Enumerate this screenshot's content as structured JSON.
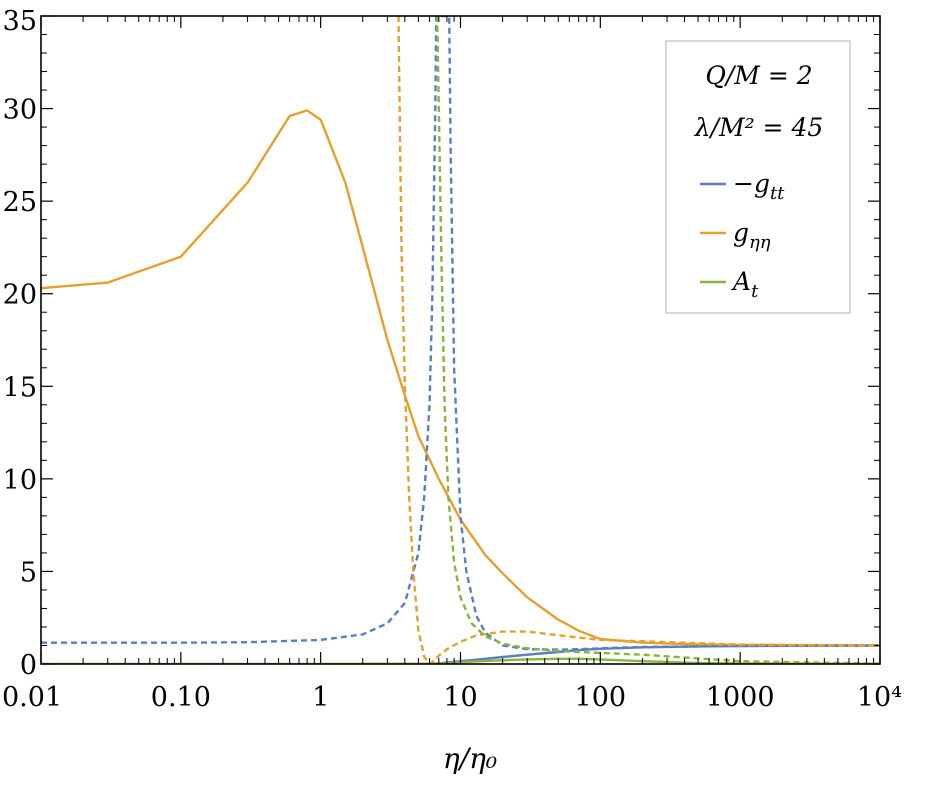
{
  "chart_data": {
    "type": "line",
    "xlabel": "η/η₀",
    "ylabel": "",
    "xscale": "log",
    "xlim": [
      0.01,
      10000
    ],
    "ylim": [
      0,
      35
    ],
    "grid": false,
    "legend_placement": "top-right",
    "annotations": [
      "Q/M = 2",
      "λ/M² = 45"
    ],
    "x_ticks": [
      {
        "value": 0.01,
        "label": "0.01"
      },
      {
        "value": 0.1,
        "label": "0.10"
      },
      {
        "value": 1,
        "label": "1"
      },
      {
        "value": 10,
        "label": "10"
      },
      {
        "value": 100,
        "label": "100"
      },
      {
        "value": 1000,
        "label": "1000"
      },
      {
        "value": 10000,
        "label": "10⁴"
      }
    ],
    "y_ticks": [
      {
        "value": 0,
        "label": "0"
      },
      {
        "value": 5,
        "label": "5"
      },
      {
        "value": 10,
        "label": "10"
      },
      {
        "value": 15,
        "label": "15"
      },
      {
        "value": 20,
        "label": "20"
      },
      {
        "value": 25,
        "label": "25"
      },
      {
        "value": 30,
        "label": "30"
      },
      {
        "value": 35,
        "label": "35"
      }
    ],
    "series": [
      {
        "name": "−g_tt",
        "color": "#5a7ec0",
        "style": "solid",
        "x": [
          6.2,
          7,
          8,
          10,
          15,
          20,
          30,
          50,
          70,
          100,
          200,
          500,
          1000,
          10000
        ],
        "y": [
          0,
          0.03,
          0.08,
          0.15,
          0.28,
          0.38,
          0.5,
          0.65,
          0.75,
          0.82,
          0.9,
          0.95,
          0.97,
          1.0
        ]
      },
      {
        "name": "g_ηη",
        "color": "#e5a02e",
        "style": "solid",
        "x": [
          0.01,
          0.03,
          0.1,
          0.3,
          0.6,
          0.8,
          1,
          1.5,
          2,
          3,
          4,
          5,
          7,
          10,
          15,
          20,
          30,
          50,
          70,
          100,
          200,
          500,
          1000,
          10000
        ],
        "y": [
          20.3,
          20.6,
          22,
          26,
          29.6,
          29.9,
          29.4,
          26,
          22.5,
          17.5,
          14.5,
          12.3,
          10,
          7.8,
          5.9,
          4.9,
          3.6,
          2.4,
          1.8,
          1.35,
          1.15,
          1.06,
          1.03,
          1.0
        ]
      },
      {
        "name": "A_t",
        "color": "#8ab43c",
        "style": "solid",
        "x": [
          0.01,
          1,
          5,
          8,
          10,
          20,
          30,
          50,
          70,
          100,
          200,
          500,
          1000,
          10000
        ],
        "y": [
          0,
          0,
          0.01,
          0.05,
          0.1,
          0.2,
          0.25,
          0.28,
          0.28,
          0.25,
          0.15,
          0.06,
          0.03,
          0.01
        ]
      },
      {
        "name": "−g_tt (dashed)",
        "color": "#5a7ec0",
        "style": "dashed",
        "x": [
          0.01,
          0.1,
          0.3,
          1,
          2,
          3,
          4,
          5,
          5.5,
          6,
          6.3,
          6.6,
          6.7,
          8.3,
          8.5,
          9,
          10,
          11,
          13,
          15,
          20,
          30,
          50,
          70,
          100,
          200,
          1000,
          10000
        ],
        "y": [
          1.15,
          1.15,
          1.18,
          1.3,
          1.6,
          2.2,
          3.3,
          6,
          9,
          14,
          20,
          30,
          35,
          35,
          28,
          16,
          8,
          5,
          2.6,
          1.7,
          1.0,
          0.8,
          0.78,
          0.8,
          0.85,
          0.92,
          0.98,
          1.0
        ]
      },
      {
        "name": "g_ηη (dashed)",
        "color": "#e5a02e",
        "style": "dashed",
        "x": [
          3.6,
          3.7,
          3.8,
          4,
          4.3,
          4.6,
          5,
          5.5,
          6,
          6.5,
          7,
          8,
          10,
          13,
          20,
          30,
          50,
          100,
          1000,
          10000
        ],
        "y": [
          35,
          28,
          22,
          15,
          9,
          5,
          1.8,
          0.4,
          0,
          0.2,
          0.45,
          0.8,
          1.2,
          1.55,
          1.75,
          1.75,
          1.55,
          1.3,
          1.05,
          1.0
        ]
      },
      {
        "name": "A_t (dashed)",
        "color": "#8ab43c",
        "style": "dashed",
        "x": [
          6.8,
          7,
          7.3,
          7.7,
          8.2,
          9,
          10,
          12,
          15,
          20,
          30,
          50,
          70,
          100,
          200,
          500,
          1000,
          10000
        ],
        "y": [
          35,
          30,
          22,
          14,
          9,
          5.5,
          3.6,
          2.2,
          1.5,
          1.1,
          0.85,
          0.7,
          0.65,
          0.6,
          0.5,
          0.3,
          0.15,
          0.02
        ]
      }
    ],
    "legend": [
      {
        "label": "−g",
        "sub": "tt",
        "color": "#5a7ec0"
      },
      {
        "label": "g",
        "sub": "ηη",
        "color": "#e5a02e"
      },
      {
        "label": "A",
        "sub": "t",
        "color": "#8ab43c"
      }
    ]
  }
}
